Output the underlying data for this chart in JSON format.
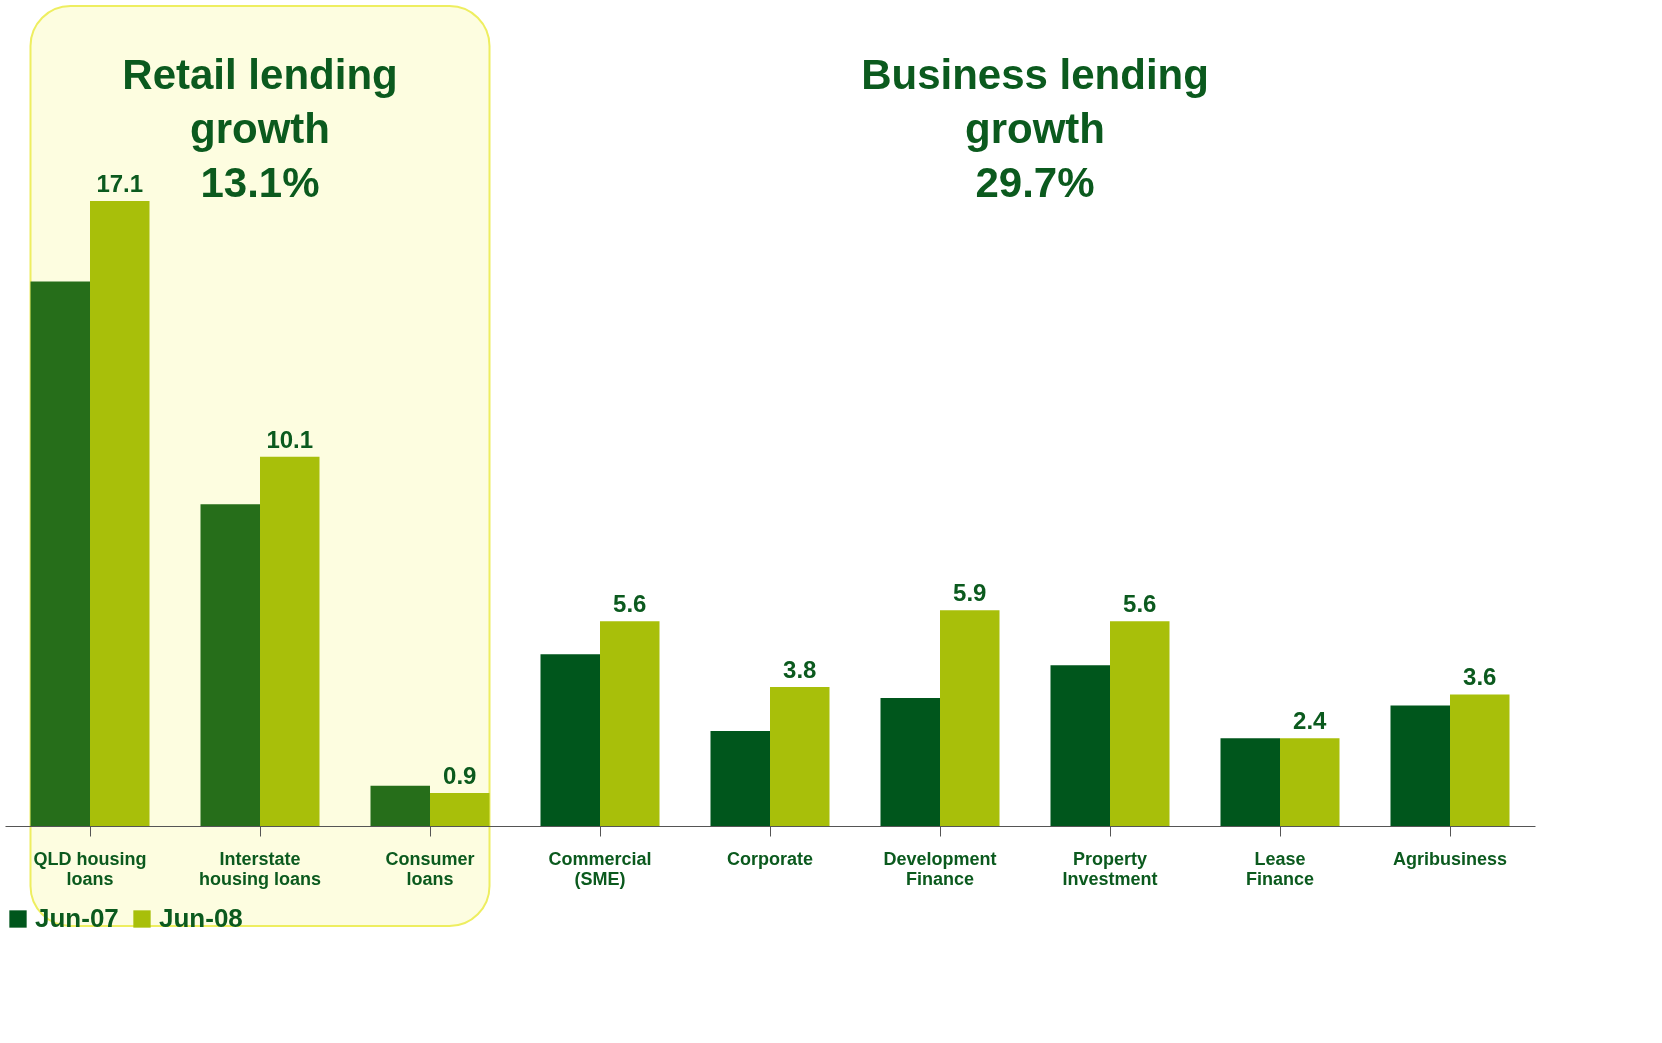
{
  "chart_data": {
    "type": "bar",
    "categories": [
      "QLD housing\nloans",
      "Interstate\nhousing loans",
      "Consumer\nloans",
      "Commercial\n(SME)",
      "Corporate",
      "Development\nFinance",
      "Property\nInvestment",
      "Lease\nFinance",
      "Agribusiness"
    ],
    "series": [
      {
        "name": "Jun-07",
        "color": "#00561c",
        "colors": [
          "#266e1a",
          "#266e1a",
          "#266e1a",
          "#00561c",
          "#00561c",
          "#00561c",
          "#00561c",
          "#00561c",
          "#00561c"
        ],
        "values": [
          14.9,
          8.8,
          1.1,
          4.7,
          2.6,
          3.5,
          4.4,
          2.4,
          3.3
        ]
      },
      {
        "name": "Jun-08",
        "color": "#a8bf0a",
        "values": [
          17.1,
          10.1,
          0.9,
          5.6,
          3.8,
          5.9,
          5.6,
          2.4,
          3.6
        ],
        "value_labels": [
          "17.1",
          "10.1",
          "0.9",
          "5.6",
          "3.8",
          "5.9",
          "5.6",
          "2.4",
          "3.6"
        ]
      }
    ],
    "bands": [
      {
        "axis": "x",
        "from": "QLD housing\nloans",
        "to": "Consumer\nloans",
        "color": "#fdfde0"
      }
    ],
    "annotations": [
      "Retail lending\ngrowth\n13.1%",
      "Business lending\ngrowth\n29.7%"
    ],
    "legend": "bottom"
  }
}
